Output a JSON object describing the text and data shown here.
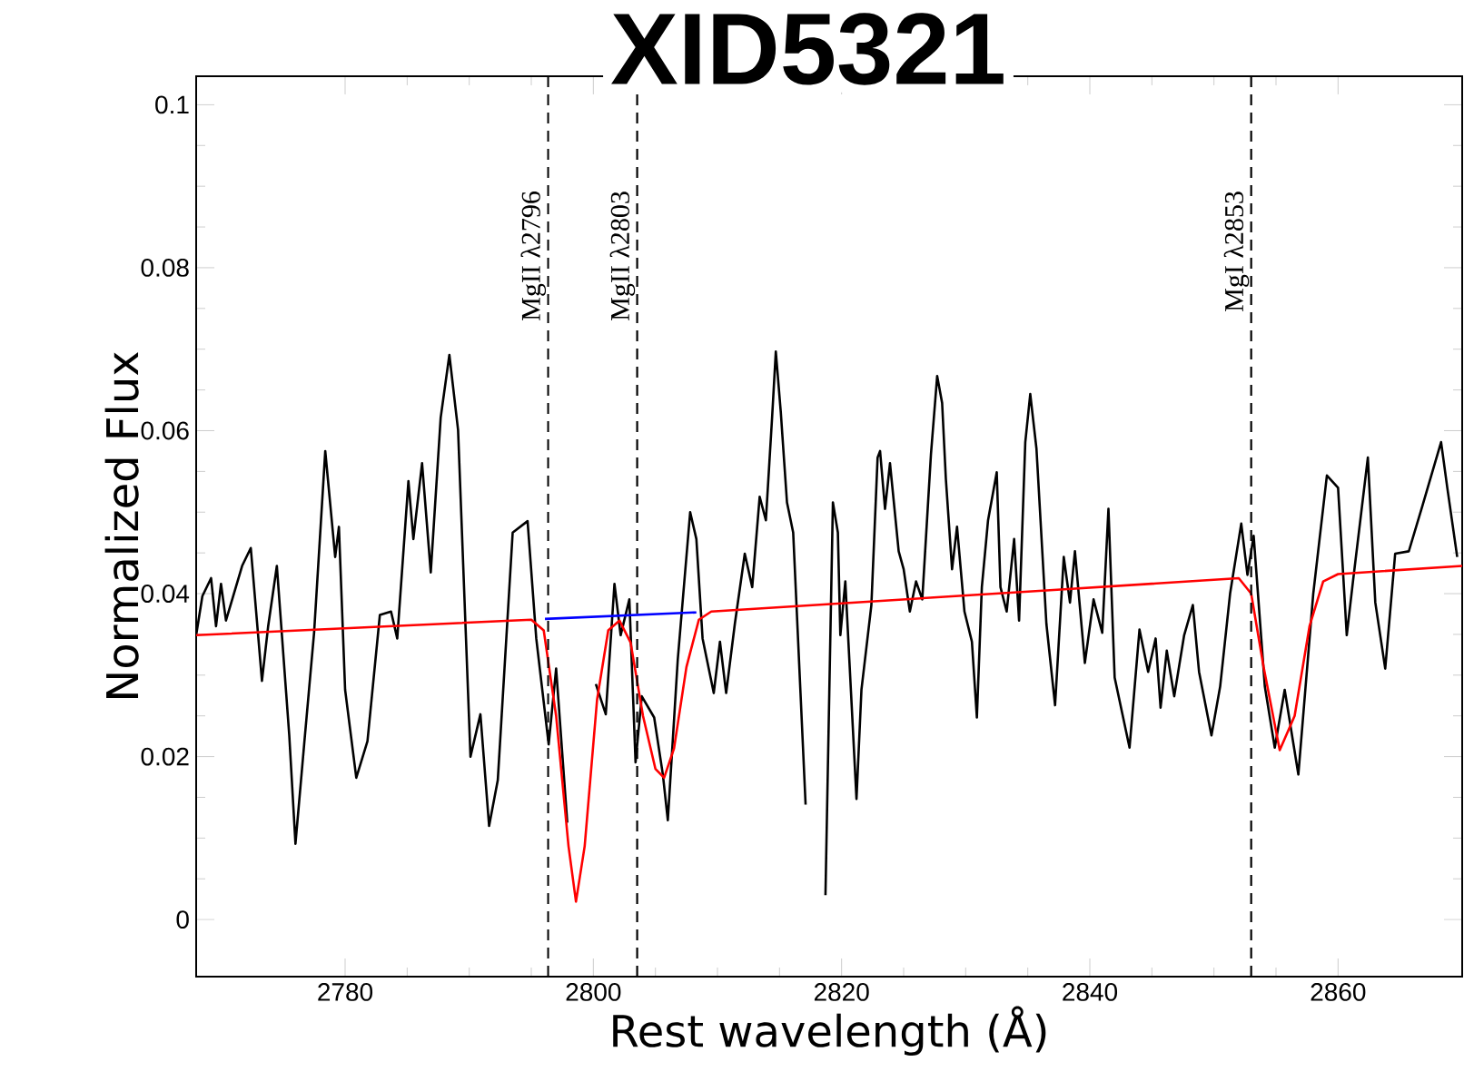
{
  "chart_data": {
    "type": "line",
    "title": "XID5321",
    "xlabel": "Rest wavelength (Å)",
    "ylabel": "Normalized Flux",
    "xlim": [
      2768,
      2870
    ],
    "ylim": [
      -0.007,
      0.1035
    ],
    "xticks": [
      2780,
      2800,
      2820,
      2840,
      2860
    ],
    "yticks": [
      0,
      0.02,
      0.04,
      0.06,
      0.08,
      0.1
    ],
    "series": [
      {
        "color": "#000000",
        "x": [
          2768.0,
          2768.5,
          2769.2,
          2769.6,
          2770.0,
          2770.4,
          2771.7,
          2772.4,
          2773.3,
          2773.8,
          2774.5,
          2775.5,
          2776.0,
          2776.7,
          2777.5,
          2778.4,
          2779.2,
          2779.5,
          2780.0,
          2780.9,
          2781.8,
          2782.8,
          2783.7,
          2784.2,
          2785.1,
          2785.5,
          2786.2,
          2786.9,
          2787.7,
          2788.4,
          2789.1,
          2790.1,
          2790.9,
          2791.6,
          2792.3,
          2793.5,
          2794.7,
          2795.4,
          2796.4,
          2797.0,
          2797.9,
          2798.6,
          2799.4,
          2800.2,
          2801.0,
          2801.7,
          2802.2,
          2802.9,
          2803.4,
          2803.9,
          2804.9,
          2805.6,
          2806.0,
          2806.8,
          2807.8,
          2808.3,
          2808.8,
          2809.7,
          2810.2,
          2810.7,
          2811.4,
          2812.2,
          2812.8,
          2813.4,
          2813.9,
          2814.4,
          2814.7,
          2815.1,
          2815.6,
          2816.1,
          2817.1,
          2817.4,
          2818.5,
          2818.7,
          2819.3,
          2819.7,
          2819.9,
          2820.3,
          2821.2,
          2821.6,
          2822.4,
          2822.9,
          2823.1,
          2823.5,
          2823.9,
          2824.6,
          2825.0,
          2825.5,
          2826.0,
          2826.5,
          2827.2,
          2827.7,
          2828.1,
          2828.4,
          2828.9,
          2829.3,
          2829.9,
          2830.5,
          2830.9,
          2831.3,
          2831.8,
          2832.5,
          2832.8,
          2833.3,
          2833.9,
          2834.3,
          2834.8,
          2835.2,
          2835.7,
          2836.5,
          2837.2,
          2837.9,
          2838.4,
          2838.8,
          2839.6,
          2840.3,
          2841.0,
          2841.5,
          2842.0,
          2843.2,
          2844.0,
          2844.7,
          2845.3,
          2845.7,
          2846.2,
          2846.8,
          2847.6,
          2848.3,
          2848.8,
          2849.8,
          2850.5,
          2851.3,
          2852.2,
          2852.7,
          2853.2,
          2854.1,
          2854.9,
          2855.7,
          2856.8,
          2858.0,
          2859.1,
          2860.0,
          2860.7,
          2861.2,
          2862.4,
          2863.0,
          2863.8,
          2864.6,
          2865.7,
          2866.8,
          2868.3,
          2868.8,
          2869.6
        ],
        "values": [
          0.0349,
          0.0397,
          0.0419,
          0.036,
          0.0412,
          0.0367,
          0.0434,
          0.0456,
          0.0293,
          0.036,
          0.0434,
          0.0226,
          0.0093,
          0.0215,
          0.0352,
          0.0575,
          0.0445,
          0.0482,
          0.0282,
          0.0174,
          0.0219,
          0.0374,
          0.0378,
          0.0345,
          0.0538,
          0.0467,
          0.056,
          0.0426,
          0.0616,
          0.0693,
          0.0601,
          0.02,
          0.0252,
          0.0115,
          0.0171,
          0.0475,
          0.0489,
          0.0345,
          0.0215,
          0.0308,
          0.0119,
          null,
          null,
          0.0289,
          0.0252,
          0.0412,
          0.0349,
          0.0393,
          0.0193,
          0.0274,
          0.0248,
          0.0178,
          0.0122,
          0.0319,
          0.05,
          0.0467,
          0.0345,
          0.0278,
          0.0341,
          0.0278,
          0.0363,
          0.0449,
          0.0408,
          0.0519,
          0.049,
          0.0616,
          0.0697,
          0.0623,
          0.0512,
          0.0475,
          0.0141,
          null,
          null,
          0.003,
          0.0512,
          0.0475,
          0.0349,
          0.0415,
          0.0148,
          0.0282,
          0.0386,
          0.0567,
          0.0575,
          0.0504,
          0.056,
          0.0452,
          0.043,
          0.0378,
          0.0415,
          0.0393,
          0.0571,
          0.0667,
          0.0634,
          0.0541,
          0.043,
          0.0482,
          0.0378,
          0.0341,
          0.0248,
          0.0408,
          0.049,
          0.0549,
          0.0408,
          0.0378,
          0.0467,
          0.0367,
          0.0586,
          0.0645,
          0.0578,
          0.0363,
          0.0263,
          0.0445,
          0.0389,
          0.0452,
          0.0315,
          0.0393,
          0.0352,
          0.0504,
          0.0297,
          0.0211,
          0.0356,
          0.0304,
          0.0345,
          0.026,
          0.033,
          0.0274,
          0.0349,
          0.0386,
          0.0304,
          0.0226,
          0.0286,
          0.04,
          0.0486,
          0.0423,
          0.0471,
          0.0286,
          0.0211,
          0.0282,
          0.0178,
          0.04,
          0.0545,
          0.053,
          0.0349,
          0.0415,
          0.0567,
          0.0389,
          0.0308,
          0.0449,
          0.0452,
          0.0508,
          0.0586,
          0.053,
          0.0445
        ]
      },
      {
        "color": "#ff0000",
        "x": [
          2768,
          2795.0,
          2796.0,
          2797.0,
          2798.0,
          2798.6,
          2799.3,
          2800.3,
          2801.2,
          2802.1,
          2803.0,
          2804.0,
          2805.0,
          2805.7,
          2806.5,
          2807.5,
          2808.5,
          2809.5,
          2836.5,
          2852.0,
          2853.0,
          2854.0,
          2855.3,
          2856.5,
          2857.7,
          2858.8,
          2860.0,
          2870
        ],
        "values": [
          0.0349,
          0.0368,
          0.0355,
          0.025,
          0.009,
          0.0022,
          0.009,
          0.027,
          0.0355,
          0.0367,
          0.034,
          0.025,
          0.0185,
          0.0174,
          0.021,
          0.031,
          0.0368,
          0.0378,
          0.0404,
          0.0419,
          0.04,
          0.031,
          0.0208,
          0.025,
          0.036,
          0.0415,
          0.0424,
          0.0434
        ]
      },
      {
        "color": "#0000ff",
        "x": [
          2796.1,
          2808.3
        ],
        "values": [
          0.0369,
          0.0377
        ]
      }
    ],
    "ref_lines": [
      {
        "axis": "x",
        "value": 2796.35,
        "label": "MgII λ2796",
        "color": "#000000",
        "line_style": "dashed"
      },
      {
        "axis": "x",
        "value": 2803.53,
        "label": "MgII λ2803",
        "color": "#000000",
        "line_style": "dashed"
      },
      {
        "axis": "x",
        "value": 2853.0,
        "label": "MgI λ2853",
        "color": "#000000",
        "line_style": "dashed"
      }
    ]
  }
}
